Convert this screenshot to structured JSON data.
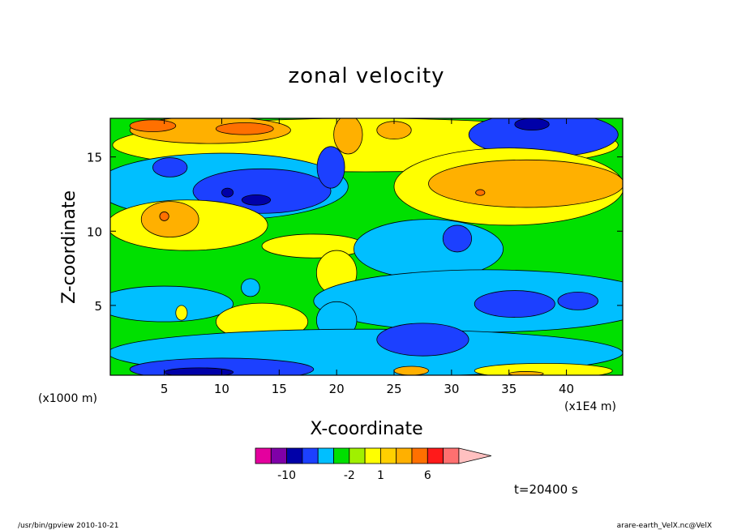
{
  "chart_data": {
    "type": "heatmap",
    "title": "zonal velocity",
    "xlabel": "X-coordinate",
    "ylabel": "Z-coordinate",
    "x_unit_label": "(x1E4 m)",
    "y_unit_label": "(x1000 m)",
    "xlim": [
      0.3,
      44.9
    ],
    "ylim": [
      0.3,
      17.6
    ],
    "x_ticks": [
      5,
      10,
      15,
      20,
      25,
      30,
      35,
      40
    ],
    "y_ticks": [
      5,
      10,
      15
    ],
    "time_label": "t=20400 s",
    "colorbar": {
      "colors": [
        "#e4009e",
        "#7f00a8",
        "#0000a8",
        "#1c40ff",
        "#00bfff",
        "#00e000",
        "#a0f000",
        "#ffff00",
        "#ffd000",
        "#ffb000",
        "#ff7000",
        "#ff1a1a",
        "#ff7070",
        "#ffc0c0"
      ],
      "tick_labels": [
        {
          "label": "-10",
          "index": 1
        },
        {
          "label": "-2",
          "index": 5
        },
        {
          "label": "1",
          "index": 7
        },
        {
          "label": "6",
          "index": 10
        }
      ]
    },
    "fields": {
      "background": "#00e000",
      "blobs": [
        {
          "x": 22.5,
          "y": 15.8,
          "w": 44,
          "h": 3.6,
          "c": "#ffff00"
        },
        {
          "x": 9,
          "y": 16.8,
          "w": 14,
          "h": 1.8,
          "c": "#ffb000"
        },
        {
          "x": 12,
          "y": 16.9,
          "w": 5,
          "h": 0.8,
          "c": "#ff7000"
        },
        {
          "x": 4,
          "y": 17.1,
          "w": 4,
          "h": 0.8,
          "c": "#ff7000"
        },
        {
          "x": 21,
          "y": 16.5,
          "w": 2.5,
          "h": 2.6,
          "c": "#ffb000"
        },
        {
          "x": 25,
          "y": 16.8,
          "w": 3,
          "h": 1.2,
          "c": "#ffb000"
        },
        {
          "x": 38,
          "y": 16.5,
          "w": 13,
          "h": 3,
          "c": "#1c40ff"
        },
        {
          "x": 37,
          "y": 17.2,
          "w": 3,
          "h": 0.8,
          "c": "#0000a8"
        },
        {
          "x": 10,
          "y": 13,
          "w": 22,
          "h": 4.5,
          "c": "#00bfff"
        },
        {
          "x": 13.5,
          "y": 12.7,
          "w": 12,
          "h": 3,
          "c": "#1c40ff"
        },
        {
          "x": 19.5,
          "y": 14.3,
          "w": 2.4,
          "h": 2.8,
          "c": "#1c40ff"
        },
        {
          "x": 5.5,
          "y": 14.3,
          "w": 3,
          "h": 1.3,
          "c": "#1c40ff"
        },
        {
          "x": 13,
          "y": 12.1,
          "w": 2.5,
          "h": 0.7,
          "c": "#0000a8"
        },
        {
          "x": 10.5,
          "y": 12.6,
          "w": 1,
          "h": 0.6,
          "c": "#0000a8"
        },
        {
          "x": 35,
          "y": 13,
          "w": 20,
          "h": 5.2,
          "c": "#ffff00"
        },
        {
          "x": 36.5,
          "y": 13.2,
          "w": 17,
          "h": 3.2,
          "c": "#ffb000"
        },
        {
          "x": 32.5,
          "y": 12.6,
          "w": 0.8,
          "h": 0.4,
          "c": "#ff7000"
        },
        {
          "x": 7,
          "y": 10.4,
          "w": 14,
          "h": 3.4,
          "c": "#ffff00"
        },
        {
          "x": 5.5,
          "y": 10.8,
          "w": 5,
          "h": 2.4,
          "c": "#ffb000"
        },
        {
          "x": 5,
          "y": 11,
          "w": 0.8,
          "h": 0.6,
          "c": "#ff7000"
        },
        {
          "x": 18,
          "y": 9,
          "w": 9,
          "h": 1.6,
          "c": "#ffff00"
        },
        {
          "x": 20,
          "y": 7.2,
          "w": 3.5,
          "h": 3,
          "c": "#ffff00"
        },
        {
          "x": 28,
          "y": 8.8,
          "w": 13,
          "h": 4,
          "c": "#00bfff"
        },
        {
          "x": 30.5,
          "y": 9.5,
          "w": 2.5,
          "h": 1.8,
          "c": "#1c40ff"
        },
        {
          "x": 33,
          "y": 5.3,
          "w": 30,
          "h": 4.2,
          "c": "#00bfff"
        },
        {
          "x": 35.5,
          "y": 5.1,
          "w": 7,
          "h": 1.8,
          "c": "#1c40ff"
        },
        {
          "x": 41,
          "y": 5.3,
          "w": 3.5,
          "h": 1.2,
          "c": "#1c40ff"
        },
        {
          "x": 5,
          "y": 5.1,
          "w": 12,
          "h": 2.4,
          "c": "#00bfff"
        },
        {
          "x": 13.5,
          "y": 3.9,
          "w": 8,
          "h": 2.5,
          "c": "#ffff00"
        },
        {
          "x": 6.5,
          "y": 4.5,
          "w": 1,
          "h": 1,
          "c": "#ffff00"
        },
        {
          "x": 12.5,
          "y": 6.2,
          "w": 1.6,
          "h": 1.2,
          "c": "#00bfff"
        },
        {
          "x": 20,
          "y": 4,
          "w": 3.5,
          "h": 2.5,
          "c": "#00bfff"
        },
        {
          "x": 22.5,
          "y": 1.8,
          "w": 44.8,
          "h": 3.2,
          "c": "#00bfff"
        },
        {
          "x": 27.5,
          "y": 2.7,
          "w": 8,
          "h": 2.2,
          "c": "#1c40ff"
        },
        {
          "x": 10,
          "y": 0.7,
          "w": 16,
          "h": 1.5,
          "c": "#1c40ff"
        },
        {
          "x": 8,
          "y": 0.5,
          "w": 6,
          "h": 0.6,
          "c": "#0000a8"
        },
        {
          "x": 38,
          "y": 0.6,
          "w": 12,
          "h": 1,
          "c": "#ffff00"
        },
        {
          "x": 26.5,
          "y": 0.6,
          "w": 3,
          "h": 0.6,
          "c": "#ffb000"
        },
        {
          "x": 36.5,
          "y": 0.4,
          "w": 3,
          "h": 0.3,
          "c": "#ffb000"
        }
      ]
    }
  },
  "footer": {
    "left": "/usr/bin/gpview   2010-10-21",
    "right": "arare-earth_VelX.nc@VelX"
  }
}
